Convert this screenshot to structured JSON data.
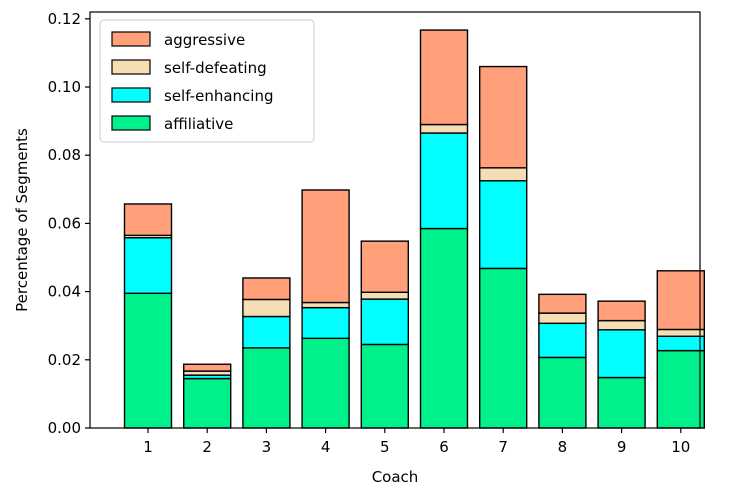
{
  "chart_data": {
    "type": "bar",
    "stacked": true,
    "title": "",
    "xlabel": "Coach",
    "ylabel": "Percentage of Segments",
    "ylim": [
      0,
      0.122
    ],
    "yticks": [
      "0.00",
      "0.02",
      "0.04",
      "0.06",
      "0.08",
      "0.10",
      "0.12"
    ],
    "ytick_values": [
      0,
      0.02,
      0.04,
      0.06,
      0.08,
      0.1,
      0.12
    ],
    "categories": [
      "1",
      "2",
      "3",
      "4",
      "5",
      "6",
      "7",
      "8",
      "9",
      "10"
    ],
    "legend_position": "top-left",
    "series": [
      {
        "name": "affiliative",
        "color": "#00f08c",
        "values": [
          0.0395,
          0.0145,
          0.0235,
          0.0263,
          0.0245,
          0.0585,
          0.0468,
          0.0207,
          0.0148,
          0.0227
        ]
      },
      {
        "name": "self-enhancing",
        "color": "#00ffff",
        "values": [
          0.0163,
          0.001,
          0.0092,
          0.009,
          0.0133,
          0.028,
          0.0257,
          0.01,
          0.014,
          0.0042
        ]
      },
      {
        "name": "self-defeating",
        "color": "#f5deb3",
        "values": [
          0.0007,
          0.0012,
          0.005,
          0.0015,
          0.002,
          0.0025,
          0.0038,
          0.003,
          0.0027,
          0.002
        ]
      },
      {
        "name": "aggressive",
        "color": "#ffa07a",
        "values": [
          0.0092,
          0.002,
          0.0063,
          0.033,
          0.015,
          0.0277,
          0.0297,
          0.0055,
          0.0057,
          0.0172
        ]
      }
    ],
    "legend_order": [
      "aggressive",
      "self-defeating",
      "self-enhancing",
      "affiliative"
    ]
  }
}
